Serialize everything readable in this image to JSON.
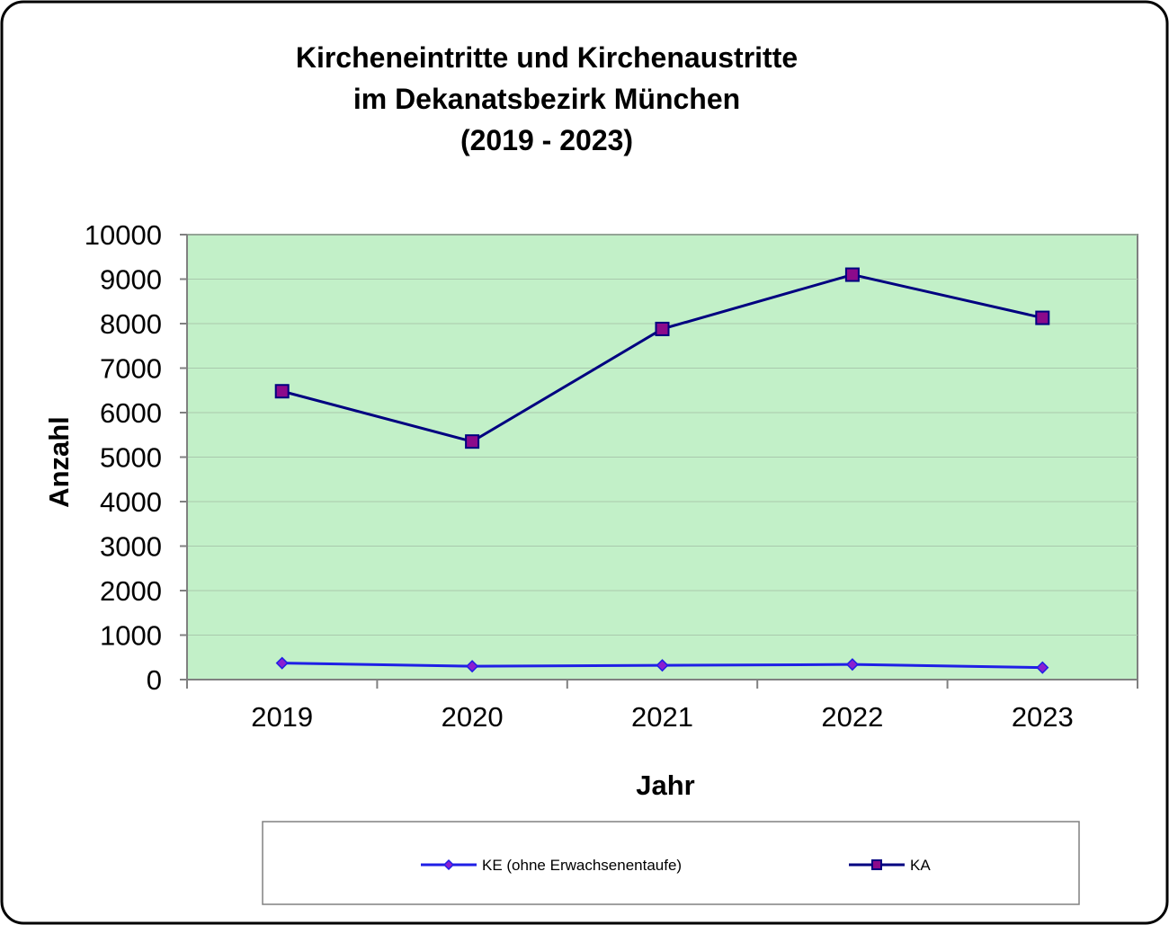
{
  "chart_data": {
    "type": "line",
    "title_lines": [
      "Kircheneintritte und Kirchenaustritte",
      "im Dekanatsbezirk München",
      "(2019 - 2023)"
    ],
    "xlabel": "Jahr",
    "ylabel": "Anzahl",
    "categories": [
      "2019",
      "2020",
      "2021",
      "2022",
      "2023"
    ],
    "ylim": [
      0,
      10000
    ],
    "yticks": [
      0,
      1000,
      2000,
      3000,
      4000,
      5000,
      6000,
      7000,
      8000,
      9000,
      10000
    ],
    "grid": true,
    "plot_background": "#c2f0c8",
    "legend_position": "bottom",
    "series": [
      {
        "name": "KE (ohne Erwachsenentaufe)",
        "values": [
          370,
          300,
          320,
          340,
          270
        ],
        "color": "#1f1fe6",
        "marker": "diamond",
        "marker_fill": "#8b1fd0"
      },
      {
        "name": "KA",
        "values": [
          6480,
          5350,
          7880,
          9100,
          8130
        ],
        "color": "#000080",
        "marker": "square",
        "marker_fill": "#8b0a8b"
      }
    ]
  }
}
